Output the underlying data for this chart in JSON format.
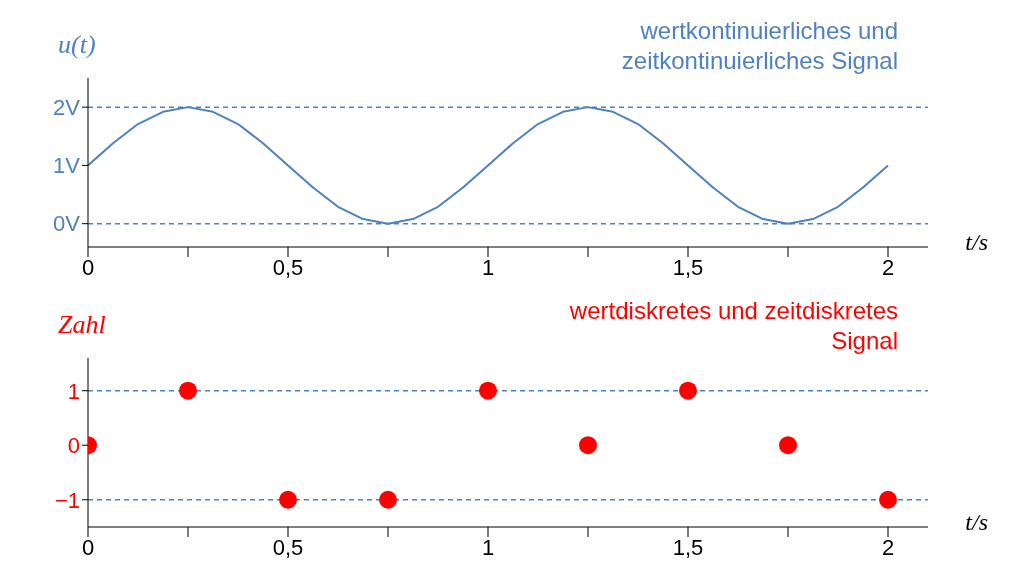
{
  "chart_data": [
    {
      "type": "line",
      "title": "wertkontinuierliches und zeitkontinuierliches Signal",
      "ylabel": "u(t)",
      "xlabel": "t/s",
      "marker": "none",
      "line_style": "solid",
      "grid": false,
      "legend": false,
      "x": [
        0,
        0.0625,
        0.125,
        0.1875,
        0.25,
        0.3125,
        0.375,
        0.4375,
        0.5,
        0.5625,
        0.625,
        0.6875,
        0.75,
        0.8125,
        0.875,
        0.9375,
        1,
        1.0625,
        1.125,
        1.1875,
        1.25,
        1.3125,
        1.375,
        1.4375,
        1.5,
        1.5625,
        1.625,
        1.6875,
        1.75,
        1.8125,
        1.875,
        1.9375,
        2
      ],
      "series": [
        {
          "color": "#4f81bd",
          "values": [
            1,
            1.38,
            1.71,
            1.92,
            2,
            1.92,
            1.71,
            1.38,
            1,
            0.62,
            0.29,
            0.08,
            0,
            0.08,
            0.29,
            0.62,
            1,
            1.38,
            1.71,
            1.92,
            2,
            1.92,
            1.71,
            1.38,
            1,
            0.62,
            0.29,
            0.08,
            0,
            0.08,
            0.29,
            0.62,
            1
          ]
        }
      ],
      "xlim": [
        0,
        2.1
      ],
      "xticks": [
        0,
        {
          "value": 0.25,
          "label": null
        },
        {
          "value": 0.5,
          "label": "0,5"
        },
        {
          "value": 0.75,
          "label": null
        },
        1,
        {
          "value": 1.25,
          "label": null
        },
        {
          "value": 1.5,
          "label": "1,5"
        },
        {
          "value": 1.75,
          "label": null
        },
        2
      ],
      "ylim": [
        -0.4,
        2.5
      ],
      "yticks": [
        {
          "value": 0,
          "label": "0V"
        },
        {
          "value": 1,
          "label": "1V"
        },
        {
          "value": 2,
          "label": "2V"
        }
      ],
      "ref_lines": [
        {
          "axis": "y",
          "value": 0,
          "color": "#4f81bd",
          "line_style": "dashed"
        },
        {
          "axis": "y",
          "value": 2,
          "color": "#4f81bd",
          "line_style": "dashed"
        }
      ]
    },
    {
      "type": "scatter",
      "title": "wertdiskretes und zeitdiskretes Signal",
      "ylabel": "Zahl",
      "xlabel": "t/s",
      "marker": "circle",
      "grid": false,
      "legend": false,
      "x": [
        0,
        0.25,
        0.5,
        0.75,
        1,
        1.25,
        1.5,
        1.75,
        2
      ],
      "series": [
        {
          "color": "#ff0000",
          "values": [
            0,
            1,
            -1,
            -1,
            1,
            0,
            1,
            0,
            -1
          ]
        }
      ],
      "xlim": [
        0,
        2.1
      ],
      "xticks": [
        0,
        {
          "value": 0.25,
          "label": null
        },
        {
          "value": 0.5,
          "label": "0,5"
        },
        {
          "value": 0.75,
          "label": null
        },
        1,
        {
          "value": 1.25,
          "label": null
        },
        {
          "value": 1.5,
          "label": "1,5"
        },
        {
          "value": 1.75,
          "label": null
        },
        2
      ],
      "ylim": [
        -1.5,
        1.6
      ],
      "yticks": [
        {
          "value": -1,
          "label": "−1"
        },
        0,
        1
      ],
      "ref_lines": [
        {
          "axis": "y",
          "value": 1,
          "color": "#4f81bd",
          "line_style": "dashed"
        },
        {
          "axis": "y",
          "value": -1,
          "color": "#4f81bd",
          "line_style": "dashed"
        }
      ]
    }
  ]
}
